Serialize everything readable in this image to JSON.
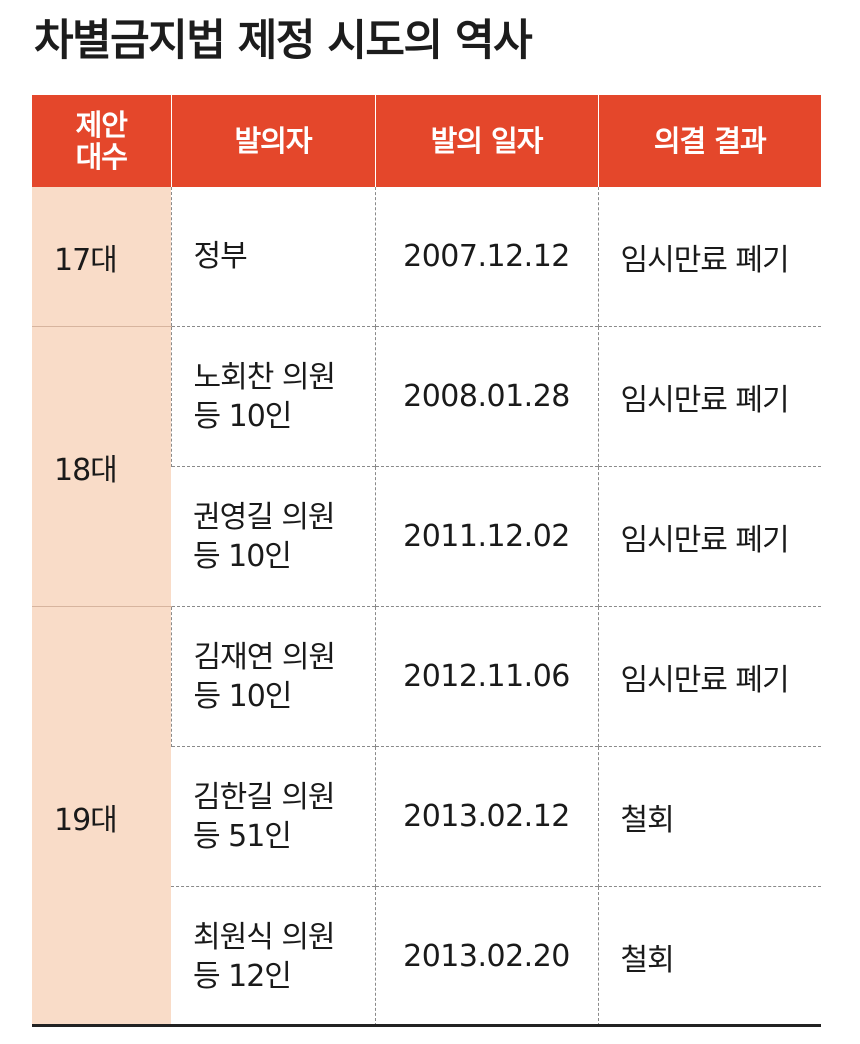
{
  "title": "차별금지법 제정 시도의 역사",
  "table": {
    "headers": [
      [
        "제안",
        "대수"
      ],
      "발의자",
      "발의 일자",
      "의결 결과"
    ],
    "sessions": [
      {
        "name": "17대",
        "rows": [
          {
            "proposer": [
              "정부"
            ],
            "date": "2007.12.12",
            "result": "임시만료 폐기"
          }
        ]
      },
      {
        "name": "18대",
        "rows": [
          {
            "proposer": [
              "노회찬 의원",
              "등 10인"
            ],
            "date": "2008.01.28",
            "result": "임시만료 폐기"
          },
          {
            "proposer": [
              "권영길 의원",
              "등 10인"
            ],
            "date": "2011.12.02",
            "result": "임시만료 폐기"
          }
        ]
      },
      {
        "name": "19대",
        "rows": [
          {
            "proposer": [
              "김재연 의원",
              "등 10인"
            ],
            "date": "2012.11.06",
            "result": "임시만료 폐기"
          },
          {
            "proposer": [
              "김한길 의원",
              "등 51인"
            ],
            "date": "2013.02.12",
            "result": "철회"
          },
          {
            "proposer": [
              "최원식 의원",
              "등 12인"
            ],
            "date": "2013.02.20",
            "result": "철회"
          }
        ]
      }
    ]
  },
  "colors": {
    "header_background": "#e4472b",
    "header_text": "#ffffff",
    "session_background": "#f9dcc8",
    "rule": "#222222"
  }
}
